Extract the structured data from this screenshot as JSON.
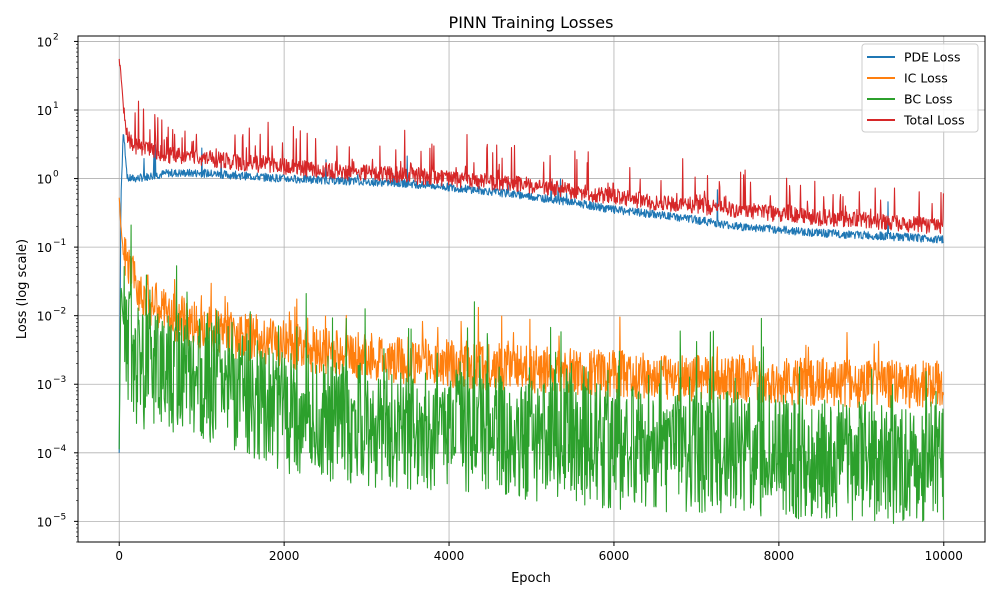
{
  "chart_data": {
    "type": "line",
    "title": "PINN Training Losses",
    "xlabel": "Epoch",
    "ylabel": "Loss (log scale)",
    "xlim": [
      -500,
      10500
    ],
    "ylim": [
      5e-06,
      120
    ],
    "yscale": "log",
    "grid": true,
    "legend_position": "top-right",
    "x_ticks": [
      0,
      2000,
      4000,
      6000,
      8000,
      10000
    ],
    "x_tick_labels": [
      "0",
      "2000",
      "4000",
      "6000",
      "8000",
      "10000"
    ],
    "y_ticks": [
      1e-05,
      0.0001,
      0.001,
      0.01,
      0.1,
      1,
      10,
      100
    ],
    "y_tick_labels": [
      "10",
      "10",
      "10",
      "10",
      "10",
      "10",
      "10",
      "10"
    ],
    "y_tick_exponents": [
      "−5",
      "−4",
      "−3",
      "−2",
      "−1",
      "0",
      "1",
      "2"
    ],
    "x": [
      0,
      20,
      50,
      100,
      200,
      400,
      600,
      1000,
      1500,
      2000,
      2500,
      3000,
      3500,
      4000,
      4500,
      5000,
      5500,
      6000,
      6500,
      7000,
      7500,
      8000,
      8500,
      9000,
      9500,
      10000
    ],
    "series": [
      {
        "name": "PDE Loss",
        "color": "#1f77b4",
        "values": [
          0.0001,
          0.5,
          5.0,
          1.0,
          1.0,
          1.1,
          1.2,
          1.2,
          1.1,
          1.0,
          0.95,
          0.9,
          0.85,
          0.75,
          0.65,
          0.55,
          0.45,
          0.35,
          0.3,
          0.25,
          0.2,
          0.18,
          0.16,
          0.15,
          0.14,
          0.13
        ]
      },
      {
        "name": "IC Loss",
        "color": "#ff7f0e",
        "values": [
          0.5,
          0.2,
          0.08,
          0.05,
          0.03,
          0.015,
          0.01,
          0.007,
          0.005,
          0.004,
          0.003,
          0.0025,
          0.0022,
          0.002,
          0.0018,
          0.0016,
          0.0015,
          0.0014,
          0.0013,
          0.0012,
          0.0012,
          0.0011,
          0.0011,
          0.001,
          0.001,
          0.001
        ]
      },
      {
        "name": "BC Loss",
        "color": "#2ca02c",
        "values": [
          0.0001,
          0.03,
          0.008,
          0.004,
          0.002,
          0.0015,
          0.0015,
          0.0012,
          0.0008,
          0.0004,
          0.0003,
          0.00025,
          0.00022,
          0.0002,
          0.00018,
          0.00016,
          0.00014,
          0.00012,
          0.00011,
          0.0001,
          0.0001,
          9e-05,
          8e-05,
          8e-05,
          7e-05,
          7e-05
        ]
      },
      {
        "name": "Total Loss",
        "color": "#d62728",
        "values": [
          50.0,
          35.0,
          10.0,
          4.0,
          3.0,
          2.5,
          2.2,
          2.0,
          1.7,
          1.5,
          1.3,
          1.2,
          1.1,
          1.0,
          0.9,
          0.8,
          0.65,
          0.55,
          0.45,
          0.4,
          0.35,
          0.3,
          0.27,
          0.25,
          0.22,
          0.2
        ]
      }
    ]
  }
}
